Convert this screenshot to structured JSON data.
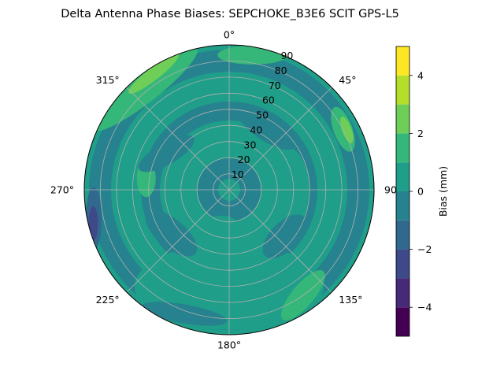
{
  "chart_data": {
    "type": "polar-contour",
    "title": "Delta Antenna Phase Biases: SEPCHOKE_B3E6   SCIT GPS-L5",
    "azimuth": {
      "direction": "clockwise",
      "zero": "top",
      "tick_labels": [
        {
          "deg": 0,
          "label": "0°"
        },
        {
          "deg": 45,
          "label": "45°"
        },
        {
          "deg": 90,
          "label": "90"
        },
        {
          "deg": 135,
          "label": "135°"
        },
        {
          "deg": 180,
          "label": "180°"
        },
        {
          "deg": 225,
          "label": "225°"
        },
        {
          "deg": 270,
          "label": "270°"
        },
        {
          "deg": 315,
          "label": "315°"
        }
      ]
    },
    "radial": {
      "range": [
        0,
        90
      ],
      "ticks": [
        10,
        20,
        30,
        40,
        50,
        60,
        70,
        80,
        90
      ],
      "tick_labels": [
        "10",
        "20",
        "30",
        "40",
        "50",
        "60",
        "70",
        "80",
        "90"
      ],
      "label_azimuth_deg": 22.5
    },
    "grid": true,
    "colorbar": {
      "label": "Bias (mm)",
      "range": [
        -5,
        5
      ],
      "levels": [
        -5,
        -4.5,
        -4,
        -3.5,
        -3,
        -2.5,
        -2,
        -1.5,
        -1,
        -0.5,
        0,
        0.5,
        1,
        1.5,
        2,
        2.5,
        3,
        3.5,
        4,
        4.5,
        5
      ],
      "ticks": [
        -4,
        -2,
        0,
        2,
        4
      ],
      "tick_labels": [
        "−4",
        "−2",
        "0",
        "2",
        "4"
      ],
      "colors": [
        "#440154",
        "#482878",
        "#3e4989",
        "#31688e",
        "#26828e",
        "#1f9e89",
        "#35b779",
        "#6ece58",
        "#b5de2b",
        "#fde725"
      ],
      "placement": "right"
    },
    "contour_regions": [
      {
        "description": "base field",
        "level": "0 to 1"
      },
      {
        "description": "inner ring",
        "level": "-1 to 0"
      },
      {
        "description": "outer rim NW",
        "level": "2 to 3"
      },
      {
        "description": "west edge",
        "level": "-3 to -2"
      },
      {
        "description": "southeast ring",
        "level": "0 to 1"
      }
    ]
  }
}
